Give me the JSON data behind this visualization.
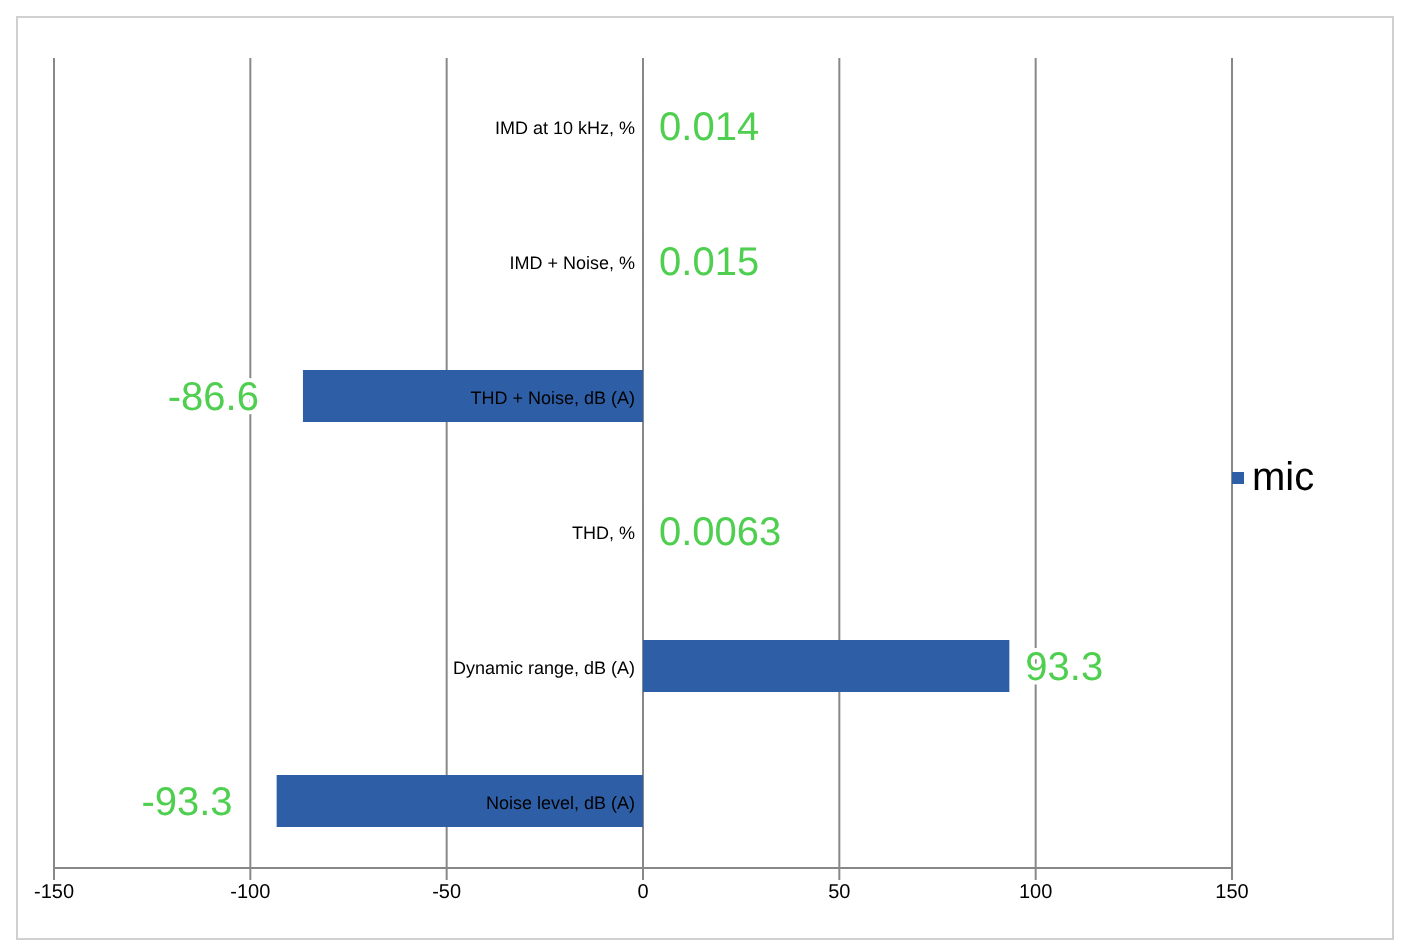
{
  "chart_data": {
    "type": "bar",
    "orientation": "horizontal",
    "categories": [
      "IMD at 10 kHz, %",
      "IMD + Noise, %",
      "THD + Noise, dB (A)",
      "THD, %",
      "Dynamic range, dB (A)",
      "Noise level, dB (A)"
    ],
    "series": [
      {
        "name": "mic",
        "color": "#2e5fa6",
        "values": [
          0.014,
          0.015,
          -86.6,
          0.0063,
          93.3,
          -93.3
        ]
      }
    ],
    "xlim": [
      -150,
      150
    ],
    "xticks": [
      -150,
      -100,
      -50,
      0,
      50,
      100,
      150
    ],
    "grid": "x",
    "legend": "right",
    "data_labels": true
  }
}
